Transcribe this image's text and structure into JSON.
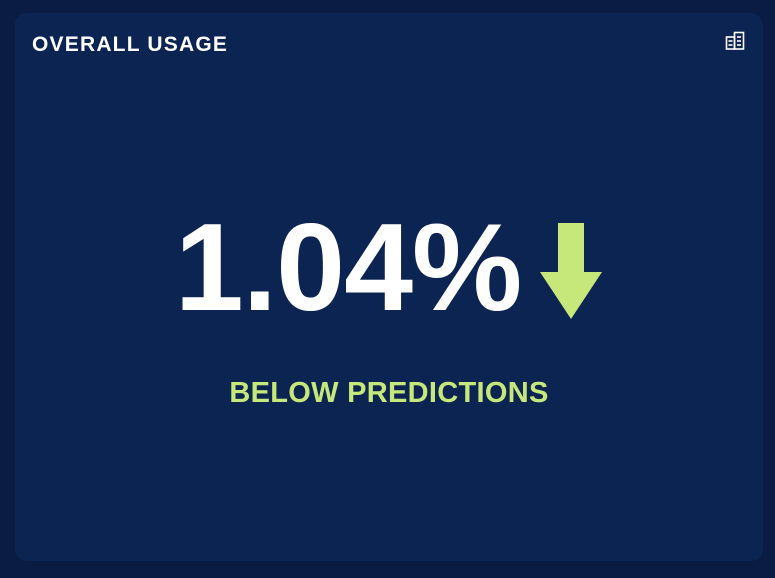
{
  "card": {
    "title": "OVERALL USAGE",
    "corner_icon": "report-icon"
  },
  "metric": {
    "value": "1.04%",
    "trend": "down",
    "trend_icon": "arrow-down-icon",
    "caption": "BELOW PREDICTIONS"
  },
  "colors": {
    "background": "#0a1c44",
    "card": "#0b2452",
    "text": "#ffffff",
    "accent": "#c6e87a"
  }
}
